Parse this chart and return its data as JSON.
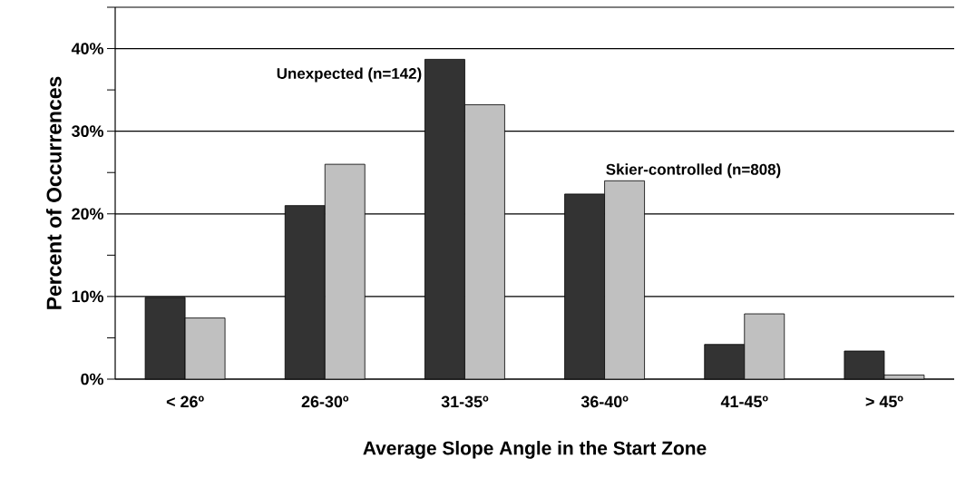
{
  "chart_data": {
    "type": "bar",
    "xlabel": "Average Slope Angle in the Start Zone",
    "ylabel": "Percent of Occurrences",
    "categories": [
      "< 26º",
      "26-30º",
      "31-35º",
      "36-40º",
      "41-45º",
      "> 45º"
    ],
    "series": [
      {
        "name": "Unexpected (n=142)",
        "color": "#333333",
        "values": [
          9.9,
          21.0,
          38.7,
          22.4,
          4.2,
          3.4
        ]
      },
      {
        "name": "Skier-controlled (n=808)",
        "color": "#c0c0c0",
        "values": [
          7.4,
          26.0,
          33.2,
          24.0,
          7.9,
          0.5
        ]
      }
    ],
    "ylim": [
      0,
      45
    ],
    "yticks": [
      {
        "value": 0,
        "label": "0%"
      },
      {
        "value": 5,
        "label": null
      },
      {
        "value": 10,
        "label": "10%"
      },
      {
        "value": 15,
        "label": null
      },
      {
        "value": 20,
        "label": "20%"
      },
      {
        "value": 25,
        "label": null
      },
      {
        "value": 30,
        "label": "30%"
      },
      {
        "value": 35,
        "label": null
      },
      {
        "value": 40,
        "label": "40%"
      },
      {
        "value": 45,
        "label": null
      }
    ],
    "grid": "y"
  }
}
